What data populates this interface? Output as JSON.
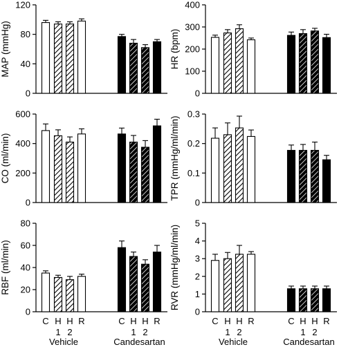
{
  "figure": {
    "categories": [
      "C",
      "H",
      "H",
      "R"
    ],
    "category_subs": [
      "",
      "1",
      "2",
      ""
    ],
    "groups": [
      "Vehicle",
      "Candesartan"
    ],
    "colors": {
      "vehicle": "#ffffff",
      "candesartan": "#000000",
      "stroke": "#000000"
    }
  },
  "chart_data": [
    {
      "type": "bar",
      "ylabel": "MAP (mmHg)",
      "ylim": [
        0,
        120
      ],
      "yticks": [
        0,
        40,
        80,
        120
      ],
      "series": [
        {
          "name": "Vehicle",
          "values": [
            96,
            94,
            94,
            98
          ],
          "errors": [
            3,
            3,
            3,
            3
          ]
        },
        {
          "name": "Candesartan",
          "values": [
            77,
            68,
            62,
            70
          ],
          "errors": [
            3,
            5,
            4,
            3
          ]
        }
      ]
    },
    {
      "type": "bar",
      "ylabel": "HR (bpm)",
      "ylim": [
        0,
        400
      ],
      "yticks": [
        0,
        100,
        200,
        300,
        400
      ],
      "series": [
        {
          "name": "Vehicle",
          "values": [
            253,
            273,
            292,
            242
          ],
          "errors": [
            10,
            15,
            18,
            8
          ]
        },
        {
          "name": "Candesartan",
          "values": [
            262,
            270,
            282,
            252
          ],
          "errors": [
            15,
            18,
            12,
            15
          ]
        }
      ]
    },
    {
      "type": "bar",
      "ylabel": "CO (ml/min)",
      "ylim": [
        0,
        600
      ],
      "yticks": [
        0,
        200,
        400,
        600
      ],
      "series": [
        {
          "name": "Vehicle",
          "values": [
            488,
            453,
            410,
            465
          ],
          "errors": [
            45,
            40,
            35,
            35
          ]
        },
        {
          "name": "Candesartan",
          "values": [
            465,
            410,
            375,
            520
          ],
          "errors": [
            40,
            45,
            45,
            45
          ]
        }
      ]
    },
    {
      "type": "bar",
      "ylabel": "TPR (mmHg/ml/min)",
      "ylim": [
        0,
        0.3
      ],
      "yticks": [
        0,
        0.1,
        0.2,
        0.3
      ],
      "series": [
        {
          "name": "Vehicle",
          "values": [
            0.218,
            0.23,
            0.253,
            0.224
          ],
          "errors": [
            0.035,
            0.04,
            0.04,
            0.022
          ]
        },
        {
          "name": "Candesartan",
          "values": [
            0.177,
            0.177,
            0.177,
            0.145
          ],
          "errors": [
            0.018,
            0.02,
            0.028,
            0.015
          ]
        }
      ]
    },
    {
      "type": "bar",
      "ylabel": "RBF (ml/min)",
      "ylim": [
        0,
        80
      ],
      "yticks": [
        0,
        20,
        40,
        60,
        80
      ],
      "series": [
        {
          "name": "Vehicle",
          "values": [
            35,
            31,
            29,
            32
          ],
          "errors": [
            2,
            2,
            3,
            2
          ]
        },
        {
          "name": "Candesartan",
          "values": [
            58,
            50,
            43,
            54
          ],
          "errors": [
            6,
            4,
            4,
            6
          ]
        }
      ]
    },
    {
      "type": "bar",
      "ylabel": "RVR (mmHg/ml/min)",
      "ylim": [
        0,
        5
      ],
      "yticks": [
        0,
        1,
        2,
        3,
        4,
        5
      ],
      "series": [
        {
          "name": "Vehicle",
          "values": [
            2.9,
            3.0,
            3.25,
            3.25
          ],
          "errors": [
            0.35,
            0.35,
            0.5,
            0.15
          ]
        },
        {
          "name": "Candesartan",
          "values": [
            1.3,
            1.3,
            1.3,
            1.3
          ],
          "errors": [
            0.15,
            0.15,
            0.15,
            0.15
          ]
        }
      ]
    }
  ]
}
